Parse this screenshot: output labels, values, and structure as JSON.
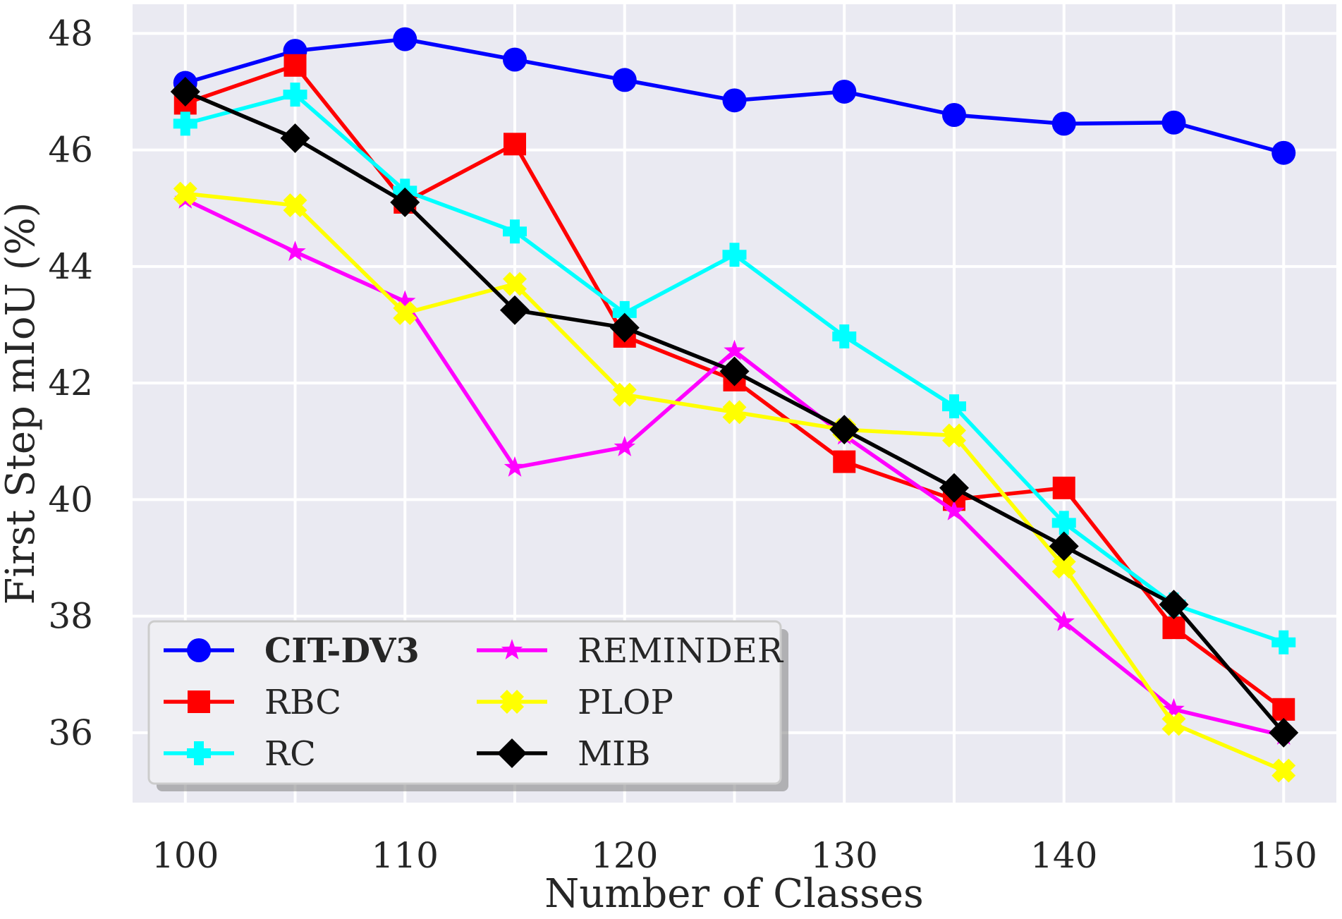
{
  "chart_data": {
    "type": "line",
    "title": "",
    "xlabel": "Number of Classes",
    "ylabel": "First Step mIoU (%)",
    "x": [
      100,
      105,
      110,
      115,
      120,
      125,
      130,
      135,
      140,
      145,
      150
    ],
    "xlim": [
      97.6,
      152.4
    ],
    "ylim": [
      34.8,
      48.5
    ],
    "xticks": [
      100,
      110,
      120,
      130,
      140,
      150
    ],
    "yticks": [
      36,
      38,
      40,
      42,
      44,
      46,
      48
    ],
    "grid": true,
    "legend_position": "lower-left",
    "legend_columns": 2,
    "series": [
      {
        "name": "CIT-DV3",
        "color": "#0000ff",
        "marker": "circle",
        "bold_label": true,
        "values": [
          47.15,
          47.7,
          47.9,
          47.55,
          47.2,
          46.85,
          47.0,
          46.6,
          46.45,
          46.47,
          45.95
        ]
      },
      {
        "name": "RBC",
        "color": "#ff0000",
        "marker": "square",
        "bold_label": false,
        "values": [
          46.8,
          47.45,
          45.1,
          46.1,
          42.8,
          42.05,
          40.65,
          40.0,
          40.2,
          37.8,
          36.4
        ]
      },
      {
        "name": "RC",
        "color": "#00ffff",
        "marker": "plus",
        "bold_label": false,
        "values": [
          46.45,
          46.95,
          45.3,
          44.6,
          43.2,
          44.2,
          42.8,
          41.6,
          39.6,
          38.2,
          37.55
        ]
      },
      {
        "name": "REMINDER",
        "color": "#ff00ff",
        "marker": "star",
        "bold_label": false,
        "values": [
          45.15,
          44.25,
          43.4,
          40.55,
          40.9,
          42.55,
          41.1,
          39.8,
          37.9,
          36.4,
          35.95
        ]
      },
      {
        "name": "PLOP",
        "color": "#ffff00",
        "marker": "x",
        "bold_label": false,
        "values": [
          45.25,
          45.05,
          43.2,
          43.7,
          41.8,
          41.5,
          41.2,
          41.1,
          38.85,
          36.15,
          35.35
        ]
      },
      {
        "name": "MIB",
        "color": "#000000",
        "marker": "diamond",
        "bold_label": false,
        "values": [
          47.0,
          46.2,
          45.1,
          43.25,
          42.95,
          42.2,
          41.2,
          40.2,
          39.2,
          38.2,
          36.0
        ]
      }
    ]
  }
}
